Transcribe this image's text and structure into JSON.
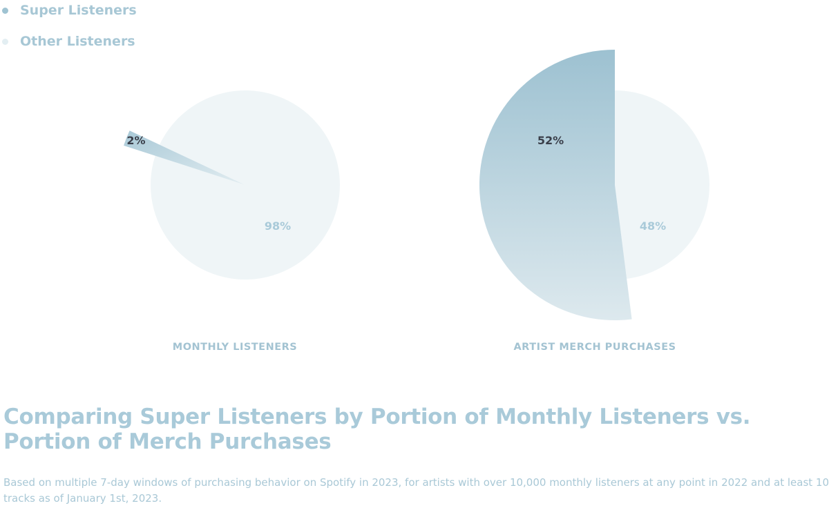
{
  "colors": {
    "super": "#9fc3d2",
    "super_light": "#dbe8ee",
    "other": "#eff5f7",
    "label_dark": "#3a3f4a",
    "label_light": "#a9cad9"
  },
  "legend": {
    "items": [
      {
        "name": "Super Listeners",
        "icon": "legend-dot"
      },
      {
        "name": "Other Listeners",
        "icon": "legend-dot"
      }
    ]
  },
  "chart_data": [
    {
      "type": "pie",
      "title": "MONTHLY LISTENERS",
      "categories": [
        "Super Listeners",
        "Other Listeners"
      ],
      "values": [
        2,
        98
      ],
      "labels": [
        "2%",
        "98%"
      ],
      "exploded": "Super Listeners"
    },
    {
      "type": "pie",
      "title": "ARTIST MERCH PURCHASES",
      "categories": [
        "Super Listeners",
        "Other Listeners"
      ],
      "values": [
        52,
        48
      ],
      "labels": [
        "52%",
        "48%"
      ],
      "exploded": "Super Listeners"
    }
  ],
  "text": {
    "title": "Comparing Super Listeners by Portion of Monthly Listeners vs. Portion of Merch Purchases",
    "subtitle": "Based on multiple 7-day windows of purchasing behavior on Spotify in 2023, for artists with over 10,000 monthly listeners at any point in 2022 and at least 10 tracks as of January 1st, 2023."
  }
}
